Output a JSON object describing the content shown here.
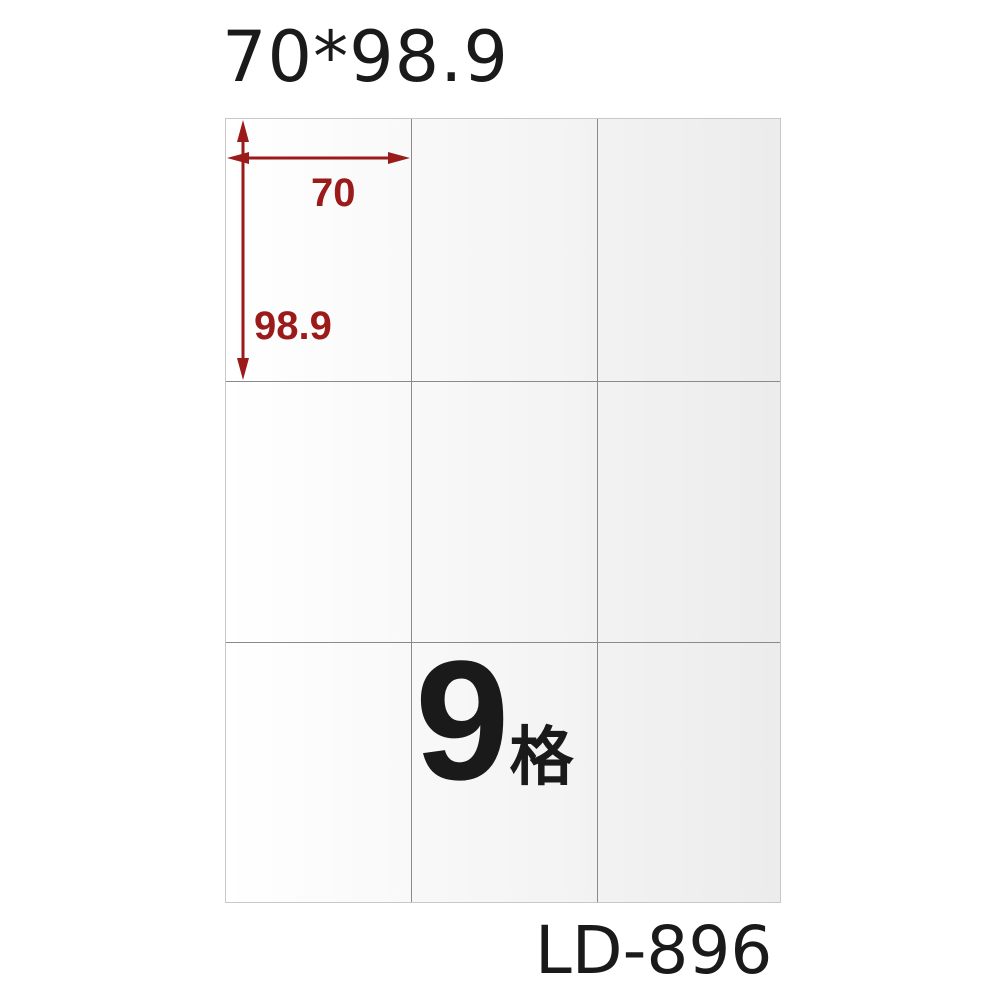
{
  "title": "70*98.9",
  "model": "LD-896",
  "dimensions": {
    "width_label": "70",
    "height_label": "98.9"
  },
  "grid": {
    "columns": 3,
    "rows": 3
  },
  "count": {
    "number": "9",
    "unit": "格"
  },
  "colors": {
    "dimension": "#9b1a1a",
    "text": "#1a1a1a"
  }
}
